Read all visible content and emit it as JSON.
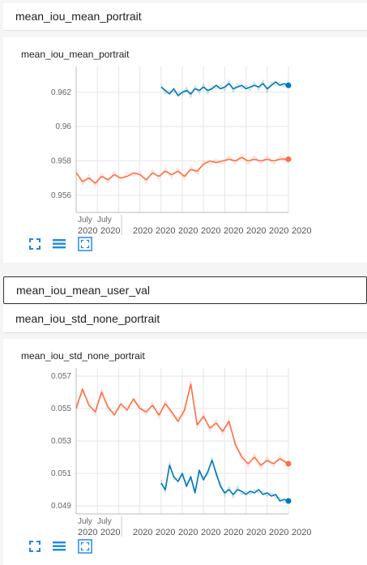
{
  "sections": [
    {
      "title": "mean_iou_mean_portrait"
    },
    {
      "title": "mean_iou_mean_user_val"
    },
    {
      "title": "mean_iou_std_none_portrait"
    }
  ],
  "charts": {
    "portrait": {
      "title": "mean_iou_mean_portrait",
      "y_ticks": [
        "0.962",
        "0.96",
        "0.958",
        "0.956"
      ],
      "x_ticks_top": [
        "July",
        "July"
      ],
      "x_ticks_bottom": [
        "2020",
        "2020",
        "2020",
        "2020",
        "2020",
        "2020",
        "2020",
        "2020",
        "2020",
        "2020"
      ]
    },
    "std": {
      "title": "mean_iou_std_none_portrait",
      "y_ticks": [
        "0.057",
        "0.055",
        "0.053",
        "0.051",
        "0.049"
      ],
      "x_ticks_top": [
        "July",
        "July"
      ],
      "x_ticks_bottom": [
        "2020",
        "2020",
        "2020",
        "2020",
        "2020",
        "2020",
        "2020",
        "2020",
        "2020",
        "2020"
      ]
    }
  },
  "icons": [
    "fit-domain-icon",
    "data-table-icon",
    "fullscreen-icon"
  ],
  "colors": {
    "orange": "#ff7043",
    "blue": "#0077bb",
    "accent": "#1e88e5"
  },
  "chart_data": [
    {
      "type": "line",
      "title": "mean_iou_mean_portrait",
      "y_range": [
        0.955,
        0.9635
      ],
      "series": [
        {
          "color": "#0077bb",
          "x": [
            0.4,
            0.42,
            0.44,
            0.46,
            0.48,
            0.5,
            0.52,
            0.54,
            0.56,
            0.58,
            0.6,
            0.62,
            0.64,
            0.66,
            0.68,
            0.7,
            0.72,
            0.74,
            0.76,
            0.78,
            0.8,
            0.82,
            0.84,
            0.86,
            0.88,
            0.9,
            0.92,
            0.94,
            0.96,
            0.98,
            1.0
          ],
          "y": [
            0.9623,
            0.9621,
            0.9619,
            0.9622,
            0.9618,
            0.962,
            0.9621,
            0.9619,
            0.9622,
            0.9621,
            0.9623,
            0.9621,
            0.9622,
            0.9624,
            0.9622,
            0.9623,
            0.9625,
            0.9622,
            0.9623,
            0.9624,
            0.9622,
            0.9623,
            0.9624,
            0.9623,
            0.9625,
            0.9622,
            0.9624,
            0.9626,
            0.9624,
            0.9625,
            0.9624
          ]
        },
        {
          "color": "#ff7043",
          "x": [
            0.0,
            0.03,
            0.06,
            0.09,
            0.12,
            0.15,
            0.18,
            0.21,
            0.24,
            0.27,
            0.3,
            0.33,
            0.36,
            0.39,
            0.42,
            0.45,
            0.48,
            0.51,
            0.54,
            0.57,
            0.6,
            0.63,
            0.66,
            0.69,
            0.72,
            0.75,
            0.78,
            0.81,
            0.84,
            0.87,
            0.9,
            0.93,
            0.96,
            1.0
          ],
          "y": [
            0.9573,
            0.9568,
            0.957,
            0.9567,
            0.9571,
            0.9569,
            0.9572,
            0.957,
            0.9571,
            0.9573,
            0.9572,
            0.9569,
            0.9573,
            0.9571,
            0.9574,
            0.9572,
            0.9574,
            0.9571,
            0.9575,
            0.9574,
            0.9578,
            0.958,
            0.9579,
            0.958,
            0.9581,
            0.958,
            0.9582,
            0.958,
            0.9581,
            0.958,
            0.9581,
            0.958,
            0.9581,
            0.9581
          ]
        }
      ]
    },
    {
      "type": "line",
      "title": "mean_iou_std_none_portrait",
      "y_range": [
        0.0485,
        0.0575
      ],
      "series": [
        {
          "color": "#ff7043",
          "x": [
            0.0,
            0.03,
            0.06,
            0.09,
            0.12,
            0.15,
            0.18,
            0.21,
            0.24,
            0.27,
            0.3,
            0.33,
            0.36,
            0.39,
            0.42,
            0.45,
            0.48,
            0.51,
            0.54,
            0.57,
            0.6,
            0.63,
            0.66,
            0.69,
            0.72,
            0.75,
            0.78,
            0.81,
            0.84,
            0.87,
            0.9,
            0.93,
            0.96,
            1.0
          ],
          "y": [
            0.055,
            0.0562,
            0.0552,
            0.0548,
            0.056,
            0.0551,
            0.0546,
            0.0553,
            0.0549,
            0.0556,
            0.055,
            0.0548,
            0.0552,
            0.0546,
            0.0553,
            0.0548,
            0.0542,
            0.0549,
            0.0565,
            0.054,
            0.0545,
            0.0538,
            0.0541,
            0.0536,
            0.0542,
            0.0528,
            0.052,
            0.0516,
            0.052,
            0.0515,
            0.0518,
            0.0516,
            0.0519,
            0.0516
          ]
        },
        {
          "color": "#0077bb",
          "x": [
            0.4,
            0.42,
            0.44,
            0.46,
            0.48,
            0.5,
            0.52,
            0.54,
            0.56,
            0.58,
            0.6,
            0.62,
            0.64,
            0.66,
            0.68,
            0.7,
            0.72,
            0.74,
            0.76,
            0.78,
            0.8,
            0.82,
            0.84,
            0.86,
            0.88,
            0.9,
            0.92,
            0.94,
            0.96,
            0.98,
            1.0
          ],
          "y": [
            0.0504,
            0.05,
            0.0515,
            0.0508,
            0.0505,
            0.051,
            0.0502,
            0.0508,
            0.0498,
            0.0512,
            0.0506,
            0.0511,
            0.0518,
            0.051,
            0.0502,
            0.0498,
            0.05,
            0.0497,
            0.05,
            0.0499,
            0.0497,
            0.0499,
            0.0498,
            0.05,
            0.0497,
            0.0498,
            0.0496,
            0.0497,
            0.0493,
            0.0494,
            0.0493
          ]
        }
      ]
    }
  ]
}
